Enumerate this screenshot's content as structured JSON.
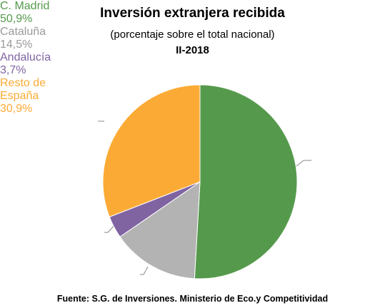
{
  "chart_data": {
    "type": "pie",
    "title": "Inversión extranjera recibida",
    "subtitle": "(porcentaje sobre el total nacional)",
    "period": "II-2018",
    "source": "Fuente: S.G. de Inversiones. Ministerio de Eco.y Competitividad",
    "categories": [
      "C. Madrid",
      "Cataluña",
      "Andalucía",
      "Resto de España"
    ],
    "values": [
      50.9,
      14.5,
      3.7,
      30.9
    ],
    "value_labels": [
      "50,9%",
      "14,5%",
      "3,7%",
      "30,9%"
    ],
    "colors": [
      "#559a4c",
      "#b3b3b3",
      "#8064a2",
      "#fbab35"
    ],
    "label_colors": [
      "#559a4c",
      "#9a9a9a",
      "#8064a2",
      "#fbab35"
    ]
  }
}
